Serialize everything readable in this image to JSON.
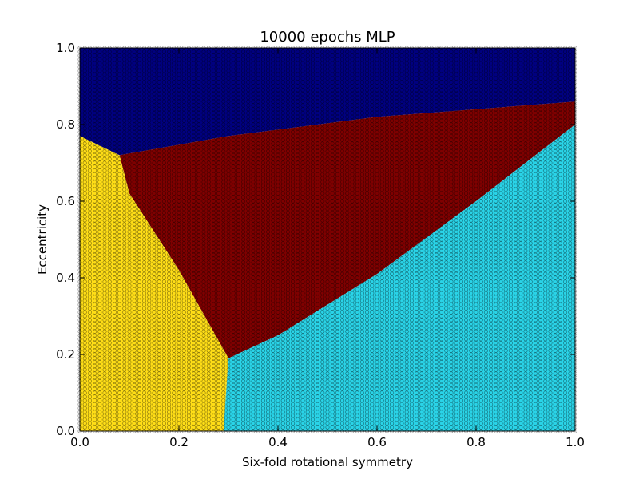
{
  "chart_data": {
    "type": "scatter",
    "title": "10000 epochs MLP",
    "xlabel": "Six-fold rotational symmetry",
    "ylabel": "Eccentricity",
    "xlim": [
      0.0,
      1.0
    ],
    "ylim": [
      0.0,
      1.0
    ],
    "xticks": [
      "0.0",
      "0.2",
      "0.4",
      "0.6",
      "0.8",
      "1.0"
    ],
    "yticks": [
      "0.0",
      "0.2",
      "0.4",
      "0.6",
      "0.8",
      "1.0"
    ],
    "grid": false,
    "legend": "none",
    "grid_resolution": 0.01,
    "series": [
      {
        "color": "#000080"
      },
      {
        "color": "#7f0000"
      },
      {
        "color": "#ffde17"
      },
      {
        "color": "#2ad4e8"
      }
    ],
    "boundaries": {
      "blue_red": [
        [
          0.0,
          0.77
        ],
        [
          0.08,
          0.72
        ],
        [
          0.3,
          0.77
        ],
        [
          0.6,
          0.82
        ],
        [
          1.0,
          0.86
        ]
      ],
      "red_cyan": [
        [
          0.3,
          0.19
        ],
        [
          0.4,
          0.25
        ],
        [
          0.6,
          0.41
        ],
        [
          0.8,
          0.6
        ],
        [
          1.0,
          0.8
        ]
      ],
      "yellow_red": [
        [
          0.08,
          0.72
        ],
        [
          0.1,
          0.62
        ],
        [
          0.2,
          0.42
        ],
        [
          0.3,
          0.19
        ]
      ],
      "yellow_cyan": [
        [
          0.3,
          0.19
        ],
        [
          0.29,
          0.0
        ]
      ]
    }
  }
}
